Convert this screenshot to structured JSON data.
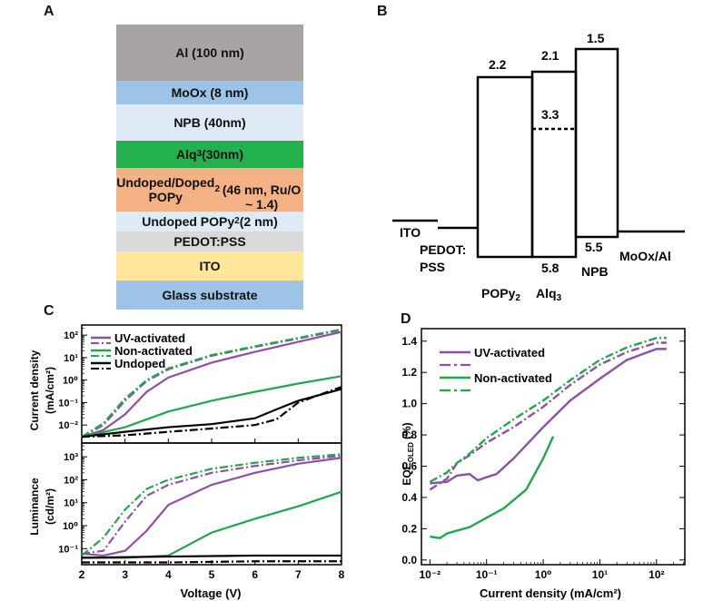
{
  "panels": {
    "a": "A",
    "b": "B",
    "c": "C",
    "d": "D"
  },
  "stack": {
    "layers": [
      {
        "label": "Al (100 nm)",
        "color": "#a8a4a4"
      },
      {
        "label": "MoOx (8 nm)",
        "color": "#9dc3e6"
      },
      {
        "label": "NPB (40nm)",
        "color": "#deebf7"
      },
      {
        "label_html": "Alq<sub>3</sub> (30nm)",
        "label": "Alq3 (30nm)",
        "color": "#22b14c"
      },
      {
        "label_html": "Undoped/Doped POPy<sub>2</sub><br>(46 nm, Ru/O ~ 1.4)",
        "label": "Undoped/Doped POPy2 (46 nm, Ru/O ~ 1.4)",
        "color": "#f4b183"
      },
      {
        "label_html": "Undoped POPy<sub>2</sub> (2 nm)",
        "label": "Undoped POPy2 (2 nm)",
        "color": "#deebf7"
      },
      {
        "label": "PEDOT:PSS",
        "color": "#d9d9d9"
      },
      {
        "label": "ITO",
        "color": "#ffe699"
      },
      {
        "label": "Glass substrate",
        "color": "#9dc3e6"
      }
    ]
  },
  "energy": {
    "values": {
      "popy_top": "2.2",
      "alq_top": "2.1",
      "npb_top": "1.5",
      "alq_dash": "3.3",
      "alq_bottom": "5.8",
      "npb_bottom": "5.5"
    },
    "labels": {
      "ito": "ITO",
      "pedot1": "PEDOT:",
      "pedot2": "PSS",
      "popy": "POPy",
      "popy_sub": "2",
      "alq": "Alq",
      "alq_sub": "3",
      "npb": "NPB",
      "moox": "MoOx/Al"
    }
  },
  "jvl": {
    "ylabel_top": "Current density",
    "ylabel_top_unit": "(mA/cm²)",
    "ylabel_bottom": "Luminance",
    "ylabel_bottom_unit": "(cd/m²)",
    "xlabel": "Voltage (V)",
    "xticks": [
      "2",
      "3",
      "4",
      "5",
      "6",
      "7",
      "8"
    ],
    "yticks_top": [
      "10²",
      "10¹",
      "10⁰",
      "10⁻¹",
      "10⁻²"
    ],
    "yticks_bottom": [
      "10³",
      "10²",
      "10¹",
      "10⁰",
      "10⁻¹"
    ],
    "legend": [
      "UV-activated",
      "Non-activated",
      "Undoped"
    ]
  },
  "eqe": {
    "ylabel": "EQE",
    "ylabel_sub": "OLED",
    "ylabel_unit": "(%)",
    "xlabel": "Current density (mA/cm²)",
    "xticks": [
      "10⁻²",
      "10⁻¹",
      "10⁰",
      "10¹",
      "10²"
    ],
    "yticks": [
      "0.0",
      "0.2",
      "0.4",
      "0.6",
      "0.8",
      "1.0",
      "1.2",
      "1.4"
    ],
    "legend": [
      "UV-activated",
      "Non-activated"
    ]
  },
  "colors": {
    "purple": "#8e4fa6",
    "green": "#1fa84a",
    "black": "#000000"
  },
  "chart_data": [
    {
      "type": "line",
      "title": "",
      "xlabel": "Voltage (V)",
      "ylabel": "Current density (mA/cm²)",
      "xlim": [
        2,
        8
      ],
      "ylim": [
        0.0015,
        300
      ],
      "log_y": true,
      "series": [
        {
          "name": "UV-activated",
          "style": "solid",
          "color": "#8e4fa6",
          "x": [
            2,
            2.5,
            3,
            3.5,
            4,
            5,
            6,
            7,
            8
          ],
          "y": [
            0.003,
            0.006,
            0.03,
            0.3,
            1.3,
            6,
            18,
            50,
            140
          ]
        },
        {
          "name": "UV-activated",
          "style": "dashdot",
          "color": "#8e4fa6",
          "x": [
            2,
            2.5,
            3,
            3.5,
            4,
            5,
            6,
            7,
            8
          ],
          "y": [
            0.003,
            0.01,
            0.12,
            0.9,
            3,
            12,
            30,
            70,
            170
          ]
        },
        {
          "name": "Non-activated",
          "style": "solid",
          "color": "#1fa84a",
          "x": [
            2,
            3,
            4,
            5,
            6,
            7,
            8
          ],
          "y": [
            0.003,
            0.008,
            0.04,
            0.12,
            0.3,
            0.7,
            1.5
          ]
        },
        {
          "name": "Non-activated",
          "style": "dashdot",
          "color": "#1fa84a",
          "x": [
            2,
            2.5,
            3,
            3.5,
            4,
            5,
            6,
            7,
            8
          ],
          "y": [
            0.003,
            0.012,
            0.15,
            1.0,
            3.3,
            13,
            32,
            75,
            180
          ]
        },
        {
          "name": "Undoped",
          "style": "solid",
          "color": "#000000",
          "x": [
            2,
            3,
            4,
            5,
            6,
            6.5,
            7,
            8
          ],
          "y": [
            0.003,
            0.005,
            0.008,
            0.011,
            0.02,
            0.05,
            0.12,
            0.4
          ]
        },
        {
          "name": "Undoped",
          "style": "dashdot",
          "color": "#000000",
          "x": [
            2,
            3,
            4,
            5,
            6,
            6.5,
            7,
            8
          ],
          "y": [
            0.003,
            0.0035,
            0.005,
            0.007,
            0.01,
            0.018,
            0.1,
            0.5
          ]
        }
      ]
    },
    {
      "type": "line",
      "title": "",
      "xlabel": "Voltage (V)",
      "ylabel": "Luminance (cd/m²)",
      "xlim": [
        2,
        8
      ],
      "ylim": [
        0.02,
        4000
      ],
      "log_y": true,
      "series": [
        {
          "name": "UV-activated",
          "style": "solid",
          "color": "#8e4fa6",
          "x": [
            2,
            2.5,
            3,
            3.5,
            4,
            5,
            6,
            7,
            8
          ],
          "y": [
            0.06,
            0.05,
            0.08,
            0.6,
            8,
            60,
            200,
            500,
            900
          ]
        },
        {
          "name": "UV-activated",
          "style": "dashdot",
          "color": "#8e4fa6",
          "x": [
            2,
            2.5,
            3,
            3.5,
            4,
            5,
            6,
            7,
            8
          ],
          "y": [
            0.06,
            0.08,
            1.5,
            20,
            60,
            200,
            400,
            700,
            1100
          ]
        },
        {
          "name": "Non-activated",
          "style": "solid",
          "color": "#1fa84a",
          "x": [
            2,
            3,
            4,
            5,
            6,
            7,
            8
          ],
          "y": [
            0.04,
            0.04,
            0.05,
            0.5,
            2,
            7,
            30
          ]
        },
        {
          "name": "Non-activated",
          "style": "dashdot",
          "color": "#1fa84a",
          "x": [
            2,
            2.5,
            3,
            3.5,
            4,
            5,
            6,
            7,
            8
          ],
          "y": [
            0.05,
            0.3,
            5,
            40,
            100,
            300,
            550,
            900,
            1300
          ]
        },
        {
          "name": "Undoped",
          "style": "solid",
          "color": "#000000",
          "x": [
            2,
            4,
            6,
            8
          ],
          "y": [
            0.04,
            0.045,
            0.05,
            0.05
          ]
        },
        {
          "name": "Undoped",
          "style": "dashdot",
          "color": "#000000",
          "x": [
            2,
            4,
            6,
            8
          ],
          "y": [
            0.025,
            0.025,
            0.028,
            0.028
          ]
        }
      ]
    },
    {
      "type": "line",
      "title": "",
      "xlabel": "Current density (mA/cm²)",
      "ylabel": "EQE_OLED (%)",
      "xlim": [
        0.01,
        200
      ],
      "ylim": [
        0.0,
        1.45
      ],
      "log_x": true,
      "series": [
        {
          "name": "UV-activated",
          "style": "solid",
          "color": "#8e4fa6",
          "x": [
            0.01,
            0.02,
            0.03,
            0.05,
            0.07,
            0.1,
            0.15,
            0.3,
            1,
            3,
            10,
            30,
            100,
            150
          ],
          "y": [
            0.49,
            0.5,
            0.54,
            0.55,
            0.51,
            0.53,
            0.55,
            0.65,
            0.85,
            1.02,
            1.16,
            1.28,
            1.35,
            1.35
          ]
        },
        {
          "name": "UV-activated",
          "style": "dashdot",
          "color": "#8e4fa6",
          "x": [
            0.01,
            0.02,
            0.03,
            0.05,
            0.1,
            0.3,
            1,
            3,
            10,
            30,
            100,
            150
          ],
          "y": [
            0.45,
            0.52,
            0.62,
            0.67,
            0.75,
            0.85,
            0.98,
            1.12,
            1.25,
            1.33,
            1.39,
            1.39
          ]
        },
        {
          "name": "Non-activated",
          "style": "solid",
          "color": "#1fa84a",
          "x": [
            0.01,
            0.015,
            0.02,
            0.05,
            0.1,
            0.2,
            0.5,
            1,
            1.5
          ],
          "y": [
            0.15,
            0.14,
            0.17,
            0.21,
            0.27,
            0.33,
            0.45,
            0.65,
            0.79
          ]
        },
        {
          "name": "Non-activated",
          "style": "dashdot",
          "color": "#1fa84a",
          "x": [
            0.01,
            0.02,
            0.03,
            0.05,
            0.1,
            0.3,
            1,
            3,
            10,
            30,
            100,
            150
          ],
          "y": [
            0.5,
            0.56,
            0.62,
            0.68,
            0.78,
            0.9,
            1.02,
            1.15,
            1.28,
            1.36,
            1.42,
            1.42
          ]
        }
      ]
    }
  ]
}
